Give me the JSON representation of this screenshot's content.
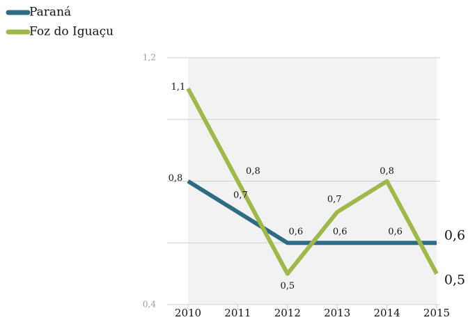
{
  "chart_data": {
    "type": "line",
    "categories": [
      "2010",
      "2011",
      "2012",
      "2013",
      "2014",
      "2015"
    ],
    "series": [
      {
        "name": "Paraná",
        "color": "#2e6b85",
        "values": [
          0.8,
          0.7,
          0.6,
          0.6,
          0.6,
          0.6
        ],
        "value_labels": [
          "0,8",
          "0,7",
          "0,6",
          "0,6",
          "0,6",
          "0,6"
        ]
      },
      {
        "name": "Foz do Iguaçu",
        "color": "#9fb84a",
        "values": [
          1.1,
          0.8,
          0.5,
          0.7,
          0.8,
          0.5
        ],
        "value_labels": [
          "1,1",
          "0,8",
          "0,5",
          "0,7",
          "0,8",
          "0,5"
        ]
      }
    ],
    "ylim": [
      0.4,
      1.2
    ],
    "yticks": [
      {
        "value": 0.4,
        "label": "0,4"
      },
      {
        "value": 1.2,
        "label": "1,2"
      }
    ],
    "grid_lines": [
      0.4,
      0.6,
      0.8,
      1.0,
      1.2
    ],
    "legend": "top-left"
  }
}
